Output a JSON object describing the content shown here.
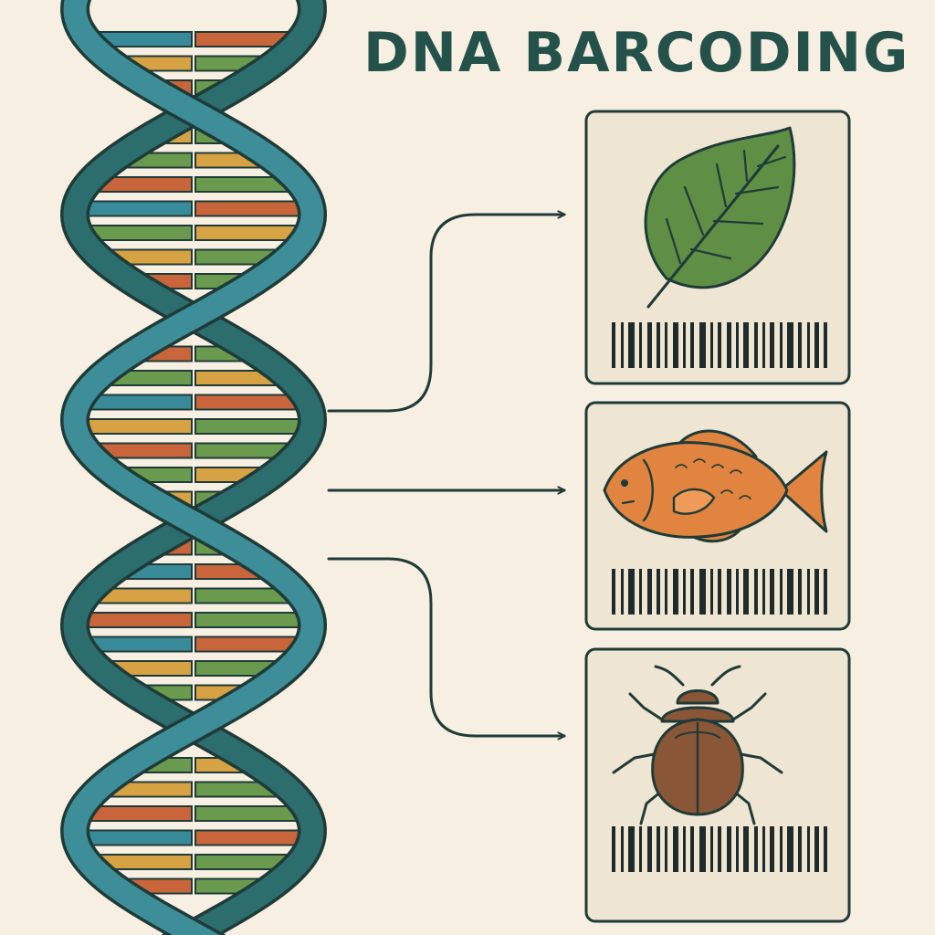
{
  "title": "DNA BARCODING",
  "colors": {
    "background": "#f8efe3",
    "outline": "#1f3b38",
    "strand_dark": "#2c6d6e",
    "strand_light": "#3d8e98",
    "base_teal": "#3a8b99",
    "base_orange": "#c8653a",
    "base_yellow": "#d6a243",
    "base_green": "#6a9a4d",
    "card_fill": "#efe5d3",
    "leaf": "#5e8f45",
    "fish": "#e08440",
    "beetle": "#8a5638",
    "barcode": "#1f2a2a"
  },
  "specimens": [
    {
      "icon": "leaf-icon"
    },
    {
      "icon": "fish-icon"
    },
    {
      "icon": "beetle-icon"
    }
  ]
}
